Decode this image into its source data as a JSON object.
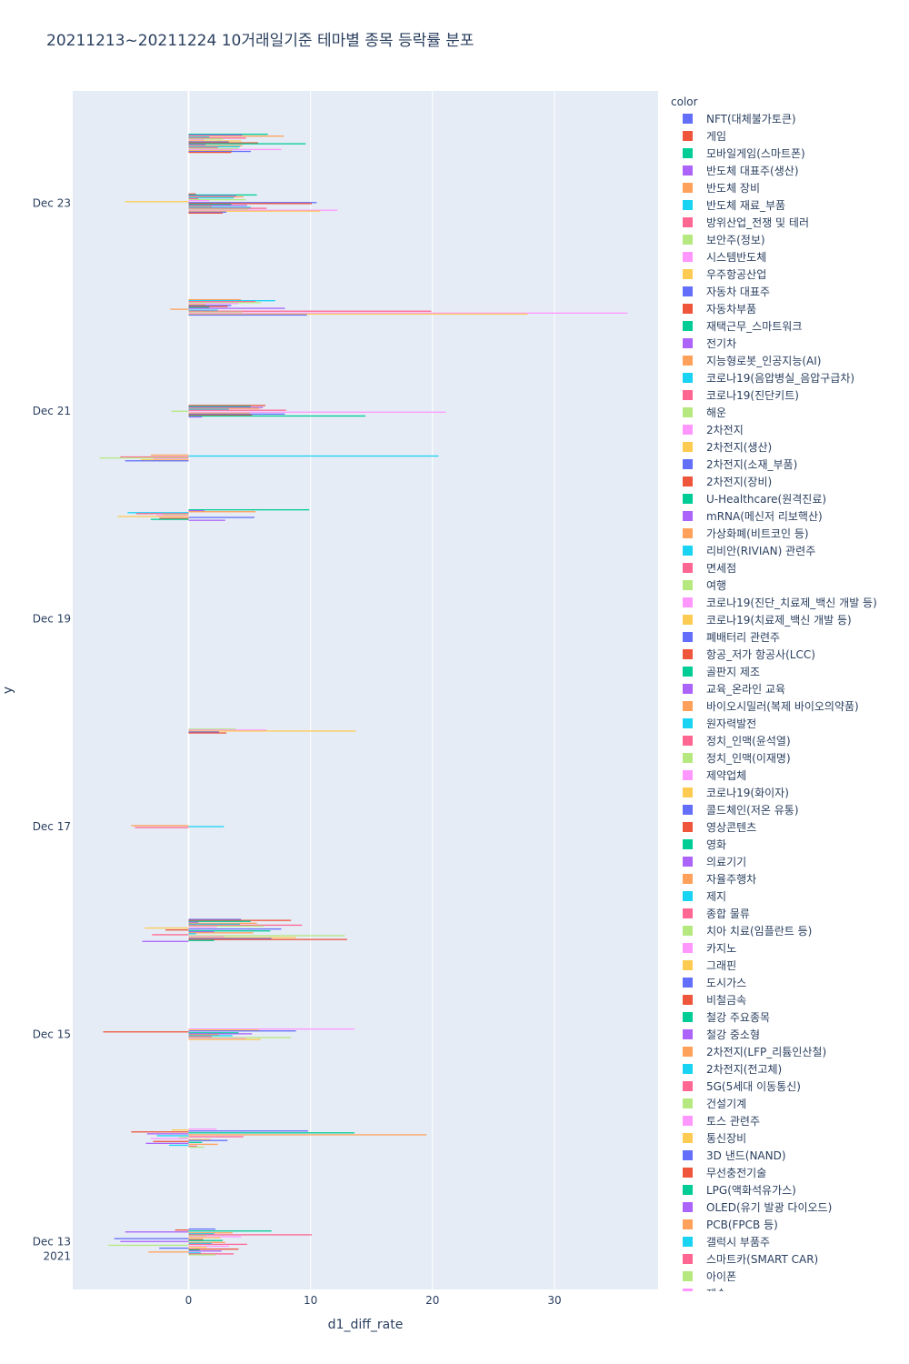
{
  "chart_data": {
    "type": "bar",
    "orientation": "horizontal",
    "title": "20211213~20211224 10거래일기준 테마별 종목 등락률 분포",
    "xlabel": "d1_diff_rate",
    "ylabel": "y",
    "xlim": [
      -9.5,
      38.5
    ],
    "x_ticks": [
      0,
      10,
      20,
      30
    ],
    "x_tick_labels": [
      "0",
      "10",
      "20",
      "30"
    ],
    "y_range_days": [
      "2021-12-12 13:00",
      "2021-12-24 02:00"
    ],
    "y_ticks": [
      {
        "date": "2021-12-13",
        "label": "Dec 13",
        "sublabel": "2021"
      },
      {
        "date": "2021-12-15",
        "label": "Dec 15",
        "sublabel": ""
      },
      {
        "date": "2021-12-17",
        "label": "Dec 17",
        "sublabel": ""
      },
      {
        "date": "2021-12-19",
        "label": "Dec 19",
        "sublabel": ""
      },
      {
        "date": "2021-12-21",
        "label": "Dec 21",
        "sublabel": ""
      },
      {
        "date": "2021-12-23",
        "label": "Dec 23",
        "sublabel": ""
      }
    ],
    "legend_title": "color",
    "legend_labels": [
      "NFT(대체불가토큰)",
      "게임",
      "모바일게임(스마트폰)",
      "반도체 대표주(생산)",
      "반도체 장비",
      "반도체 재료_부품",
      "방위산업_전쟁 및 테러",
      "보안주(정보)",
      "시스템반도체",
      "우주항공산업",
      "자동차 대표주",
      "자동차부품",
      "재택근무_스마트워크",
      "전기차",
      "지능형로봇_인공지능(AI)",
      "코로나19(음압병실_음압구급차)",
      "코로나19(진단키트)",
      "해운",
      "2차전지",
      "2차전지(생산)",
      "2차전지(소재_부품)",
      "2차전지(장비)",
      "U-Healthcare(원격진료)",
      "mRNA(메신저 리보핵산)",
      "가상화폐(비트코인 등)",
      "리비안(RIVIAN) 관련주",
      "면세점",
      "여행",
      "코로나19(진단_치료제_백신 개발 등)",
      "코로나19(치료제_백신 개발 등)",
      "폐배터리 관련주",
      "항공_저가 항공사(LCC)",
      "골판지 제조",
      "교육_온라인 교육",
      "바이오시밀러(복제 바이오의약품)",
      "원자력발전",
      "정치_인맥(윤석열)",
      "정치_인맥(이재명)",
      "제약업체",
      "코로나19(화이자)",
      "콜드체인(저온 유통)",
      "영상콘텐츠",
      "영화",
      "의료기기",
      "자율주행차",
      "제지",
      "종합 물류",
      "치아 치료(임플란트 등)",
      "카지노",
      "그래핀",
      "도시가스",
      "비철금속",
      "철강 주요종목",
      "철강 중소형",
      "2차전지(LFP_리튬인산철)",
      "2차전지(전고체)",
      "5G(5세대 이동통신)",
      "건설기계",
      "토스 관련주",
      "통신장비",
      "3D 낸드(NAND)",
      "무선충전기술",
      "LPG(액화석유가스)",
      "OLED(유기 발광 다이오드)",
      "PCB(FPCB 등)",
      "갤럭시 부품주",
      "스마트카(SMART CAR)",
      "아이폰",
      "제습"
    ],
    "colors": [
      "#636efa",
      "#EF553B",
      "#00cc96",
      "#ab63fa",
      "#FFA15A",
      "#19d3f3",
      "#FF6692",
      "#B6E880",
      "#FF97FF",
      "#FECB52"
    ],
    "days": [
      {
        "date": "2021-12-13",
        "values": [
          2.2,
          -1.1,
          6.8,
          -5.2,
          3.6,
          2.1,
          10.1,
          1.4,
          4.3,
          2.6,
          -6.1,
          1.2,
          2.8,
          -5.6,
          3.0,
          1.9,
          4.8,
          -6.6,
          3.3,
          1.5,
          -2.4,
          4.1,
          0.9,
          2.7,
          -3.3,
          1.0,
          3.7,
          2.2
        ]
      },
      {
        "date": "2021-12-14",
        "values": [
          2.3,
          -1.4,
          9.8,
          -4.7,
          13.6,
          -3.4,
          19.5,
          -2.6,
          4.5,
          -0.8,
          -3.1,
          1.8,
          3.2,
          -2.9,
          1.1,
          -3.5,
          2.4,
          -1.6,
          0.7,
          1.3
        ]
      },
      {
        "date": "2021-12-15",
        "values": [
          13.6,
          5.8,
          8.8,
          -7.0,
          4.1,
          5.2,
          2.5,
          3.6,
          1.9,
          8.4,
          4.7,
          5.9
        ]
      },
      {
        "date": "2021-12-16",
        "values": [
          4.3,
          8.4,
          5.1,
          0.8,
          5.6,
          4.2,
          9.3,
          6.2,
          2.3,
          -3.6,
          7.6,
          -1.9,
          6.7,
          2.1,
          5.3,
          0.6,
          -3.0,
          12.8,
          2.9,
          8.8,
          6.8,
          13.0,
          2.1,
          -3.8
        ]
      },
      {
        "date": "2021-12-17",
        "values": [
          -4.7,
          2.9,
          -4.4
        ]
      },
      {
        "date": "2021-12-17",
        "offset": 0.92,
        "values": [
          3.9,
          6.4,
          13.7,
          2.5,
          3.1
        ]
      },
      {
        "date": "2021-12-20",
        "values": [
          9.9,
          1.3,
          5.5,
          -5.0,
          -4.3,
          -2.1,
          -2.6,
          -5.8,
          5.4,
          -2.4,
          -3.1,
          3.0
        ]
      },
      {
        "date": "2021-12-20",
        "offset": 0.55,
        "values": [
          -3.1,
          20.5,
          -5.6,
          -7.3,
          -2.9,
          -3.9,
          -5.2
        ]
      },
      {
        "date": "2021-12-21",
        "values": [
          6.3,
          5.1,
          6.1,
          5.8,
          3.3,
          8.0,
          -1.4,
          21.1,
          5.0,
          7.9,
          5.2,
          14.5,
          1.1
        ]
      },
      {
        "date": "2021-12-22",
        "values": [
          4.3,
          7.1,
          5.5,
          5.9,
          4.1,
          1.4,
          3.5,
          3.2,
          1.7,
          7.9,
          -1.5,
          2.4,
          19.9,
          4.4,
          36.0,
          27.8,
          9.7
        ]
      },
      {
        "date": "2021-12-23",
        "values": [
          0.6,
          5.6,
          3.9,
          4.5,
          3.7,
          0.8,
          4.7,
          1.7,
          -5.2,
          10.5,
          10.1,
          3.5,
          4.8,
          1.9,
          5.1,
          6.4,
          4.9,
          12.2,
          10.8,
          3.1,
          2.8
        ]
      },
      {
        "date": "2021-12-23",
        "offset": 0.58,
        "values": [
          6.5,
          4.4,
          7.8,
          1.7,
          4.7,
          2.8,
          1.3,
          4.3,
          3.3,
          5.7,
          9.6,
          1.4,
          4.4,
          4.2,
          2.4,
          4.1,
          7.6,
          3.6,
          5.1,
          3.5
        ]
      }
    ]
  }
}
